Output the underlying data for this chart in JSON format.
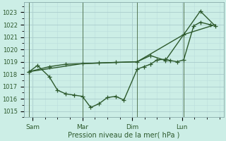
{
  "background_color": "#cceee6",
  "grid_color_major": "#aacccc",
  "grid_color_minor": "#bbdddd",
  "line_color": "#2d5a2d",
  "xlabel": "Pression niveau de la mer( hPa )",
  "ylim": [
    1014.5,
    1023.8
  ],
  "yticks": [
    1015,
    1016,
    1017,
    1018,
    1019,
    1020,
    1021,
    1022,
    1023
  ],
  "xtick_labels": [
    "Sam",
    "Mar",
    "Dim",
    "Lun"
  ],
  "xtick_positions": [
    0.5,
    3.5,
    6.5,
    9.5
  ],
  "xlim": [
    0,
    12
  ],
  "series1_x": [
    0.3,
    0.8,
    1.5,
    2.0,
    2.5,
    3.0,
    3.5,
    4.0,
    4.5,
    5.0,
    5.5,
    6.0,
    6.8,
    7.2,
    7.6,
    8.0,
    8.5,
    8.8,
    9.2,
    9.6,
    10.2,
    10.6,
    11.2
  ],
  "series1_y": [
    1018.2,
    1018.7,
    1017.8,
    1016.7,
    1016.4,
    1016.3,
    1016.2,
    1015.3,
    1015.6,
    1016.1,
    1016.2,
    1015.9,
    1018.4,
    1018.6,
    1018.8,
    1019.15,
    1019.2,
    1019.1,
    1019.0,
    1019.15,
    1021.9,
    1022.2,
    1022.0
  ],
  "series2_x": [
    0.3,
    1.5,
    2.5,
    3.5,
    4.5,
    5.5,
    6.8,
    7.6,
    8.5,
    9.6,
    10.6,
    11.5
  ],
  "series2_y": [
    1018.2,
    1018.6,
    1018.8,
    1018.85,
    1018.9,
    1018.95,
    1019.0,
    1019.5,
    1019.1,
    1021.2,
    1023.1,
    1021.9
  ],
  "series3_x": [
    0.3,
    3.5,
    6.8,
    9.6,
    11.5
  ],
  "series3_y": [
    1018.2,
    1018.85,
    1019.0,
    1021.2,
    1022.0
  ],
  "vline_positions": [
    0.3,
    3.5,
    6.8,
    9.6
  ],
  "marker_size": 4,
  "line_width": 1.0
}
